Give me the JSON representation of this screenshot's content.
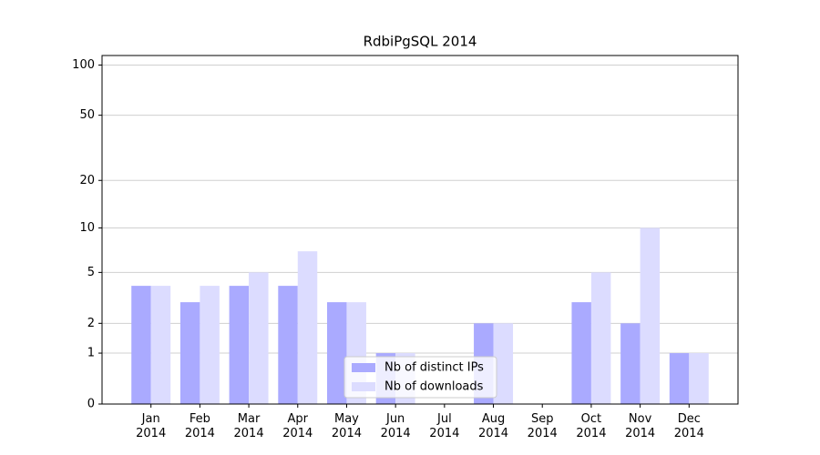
{
  "chart_data": {
    "type": "bar",
    "title": "RdbiPgSQL 2014",
    "categories": [
      "Jan 2014",
      "Feb 2014",
      "Mar 2014",
      "Apr 2014",
      "May 2014",
      "Jun 2014",
      "Jul 2014",
      "Aug 2014",
      "Sep 2014",
      "Oct 2014",
      "Nov 2014",
      "Dec 2014"
    ],
    "series": [
      {
        "name": "Nb of distinct IPs",
        "color": "#aaaaff",
        "values": [
          4,
          3,
          4,
          4,
          3,
          1,
          0,
          2,
          0,
          3,
          2,
          1
        ]
      },
      {
        "name": "Nb of downloads",
        "color": "#dcdcff",
        "values": [
          4,
          4,
          5,
          7,
          3,
          1,
          0,
          2,
          0,
          5,
          10,
          1
        ]
      }
    ],
    "yscale": "log1p",
    "ylim": [
      0,
      114
    ],
    "yticks": [
      0,
      1,
      2,
      5,
      10,
      20,
      50,
      100
    ],
    "grid": true,
    "legend": "lower center"
  }
}
